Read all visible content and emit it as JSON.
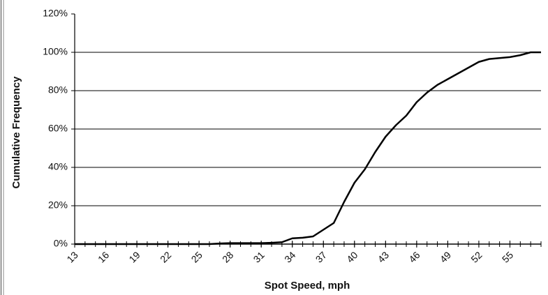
{
  "chart_data": {
    "type": "line",
    "x_label": "Spot Speed, mph",
    "y_label": "Cumulative Frequency",
    "x": [
      13,
      14,
      15,
      16,
      17,
      18,
      19,
      20,
      21,
      22,
      23,
      24,
      25,
      26,
      27,
      28,
      29,
      30,
      31,
      32,
      33,
      34,
      35,
      36,
      37,
      38,
      39,
      40,
      41,
      42,
      43,
      44,
      45,
      46,
      47,
      48,
      49,
      50,
      51,
      52,
      53,
      54,
      55,
      56,
      57,
      58
    ],
    "values": [
      0,
      0,
      0,
      0,
      0,
      0,
      0,
      0,
      0,
      0,
      0,
      0,
      0,
      0,
      0.3,
      0.5,
      0.5,
      0.5,
      0.5,
      0.7,
      1,
      3,
      3.3,
      4,
      7.5,
      11,
      22,
      32,
      39,
      48,
      56,
      62,
      67,
      74,
      79,
      83,
      86,
      89,
      92,
      95,
      96.5,
      97,
      97.5,
      98.5,
      100,
      100
    ],
    "color": "#000000",
    "xlim": [
      13,
      58
    ],
    "xticks": [
      13,
      16,
      19,
      22,
      25,
      28,
      31,
      34,
      37,
      40,
      43,
      46,
      49,
      52,
      55
    ],
    "ylim": [
      0,
      120
    ],
    "yticks": [
      {
        "value": 0,
        "label": "0%"
      },
      {
        "value": 20,
        "label": "20%"
      },
      {
        "value": 40,
        "label": "40%"
      },
      {
        "value": 60,
        "label": "60%"
      },
      {
        "value": 80,
        "label": "80%"
      },
      {
        "value": 100,
        "label": "100%"
      },
      {
        "value": 120,
        "label": "120%"
      }
    ],
    "grid": true
  }
}
